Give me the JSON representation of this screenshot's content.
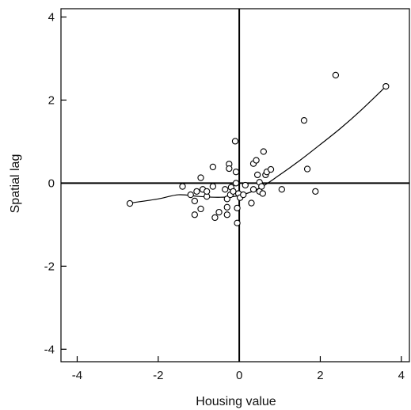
{
  "chart_data": {
    "type": "scatter",
    "xlabel": "Housing value",
    "ylabel": "Spatial lag",
    "xlim": [
      -4.4,
      4.2
    ],
    "ylim": [
      -4.3,
      4.2
    ],
    "xticks": [
      -4,
      -2,
      0,
      2,
      4
    ],
    "yticks": [
      -4,
      -2,
      0,
      2,
      4
    ],
    "xtick_labels": [
      "-4",
      "-2",
      "0",
      "2",
      "4"
    ],
    "ytick_labels": [
      "-4",
      "-2",
      "0",
      "2",
      "4"
    ],
    "grid": false,
    "reference_lines": {
      "x": 0,
      "y": 0
    },
    "points": [
      {
        "x": -2.7,
        "y": -0.49
      },
      {
        "x": -1.4,
        "y": -0.08
      },
      {
        "x": -1.2,
        "y": -0.28
      },
      {
        "x": -1.1,
        "y": -0.43
      },
      {
        "x": -1.1,
        "y": -0.76
      },
      {
        "x": -1.05,
        "y": -0.2
      },
      {
        "x": -0.95,
        "y": 0.13
      },
      {
        "x": -0.95,
        "y": -0.62
      },
      {
        "x": -0.9,
        "y": -0.15
      },
      {
        "x": -0.8,
        "y": -0.32
      },
      {
        "x": -0.8,
        "y": -0.2
      },
      {
        "x": -0.65,
        "y": 0.39
      },
      {
        "x": -0.65,
        "y": -0.08
      },
      {
        "x": -0.6,
        "y": -0.83
      },
      {
        "x": -0.5,
        "y": -0.7
      },
      {
        "x": -0.35,
        "y": -0.15
      },
      {
        "x": -0.3,
        "y": -0.38
      },
      {
        "x": -0.3,
        "y": -0.58
      },
      {
        "x": -0.3,
        "y": -0.76
      },
      {
        "x": -0.25,
        "y": 0.46
      },
      {
        "x": -0.25,
        "y": 0.35
      },
      {
        "x": -0.22,
        "y": -0.28
      },
      {
        "x": -0.2,
        "y": -0.1
      },
      {
        "x": -0.15,
        "y": -0.2
      },
      {
        "x": -0.1,
        "y": 1.01
      },
      {
        "x": -0.08,
        "y": 0.27
      },
      {
        "x": -0.08,
        "y": 0.0
      },
      {
        "x": -0.05,
        "y": -0.6
      },
      {
        "x": -0.05,
        "y": -0.96
      },
      {
        "x": -0.02,
        "y": -0.25
      },
      {
        "x": 0.02,
        "y": -0.35
      },
      {
        "x": 0.1,
        "y": -0.28
      },
      {
        "x": 0.15,
        "y": -0.05
      },
      {
        "x": 0.3,
        "y": -0.48
      },
      {
        "x": 0.35,
        "y": -0.15
      },
      {
        "x": 0.35,
        "y": 0.47
      },
      {
        "x": 0.42,
        "y": 0.55
      },
      {
        "x": 0.45,
        "y": 0.2
      },
      {
        "x": 0.5,
        "y": 0.02
      },
      {
        "x": 0.5,
        "y": -0.2
      },
      {
        "x": 0.55,
        "y": -0.08
      },
      {
        "x": 0.58,
        "y": -0.25
      },
      {
        "x": 0.6,
        "y": 0.76
      },
      {
        "x": 0.65,
        "y": 0.2
      },
      {
        "x": 0.68,
        "y": 0.27
      },
      {
        "x": 0.78,
        "y": 0.33
      },
      {
        "x": 1.05,
        "y": -0.15
      },
      {
        "x": 1.6,
        "y": 1.51
      },
      {
        "x": 1.68,
        "y": 0.34
      },
      {
        "x": 1.88,
        "y": -0.2
      },
      {
        "x": 2.38,
        "y": 2.6
      },
      {
        "x": 3.62,
        "y": 2.33
      }
    ],
    "smoother": [
      {
        "x": -2.7,
        "y": -0.48
      },
      {
        "x": -2.0,
        "y": -0.38
      },
      {
        "x": -1.5,
        "y": -0.28
      },
      {
        "x": -1.0,
        "y": -0.32
      },
      {
        "x": -0.5,
        "y": -0.34
      },
      {
        "x": 0.0,
        "y": -0.3
      },
      {
        "x": 0.5,
        "y": -0.12
      },
      {
        "x": 1.0,
        "y": 0.2
      },
      {
        "x": 1.5,
        "y": 0.55
      },
      {
        "x": 2.0,
        "y": 0.93
      },
      {
        "x": 2.5,
        "y": 1.32
      },
      {
        "x": 3.0,
        "y": 1.75
      },
      {
        "x": 3.62,
        "y": 2.33
      }
    ]
  }
}
